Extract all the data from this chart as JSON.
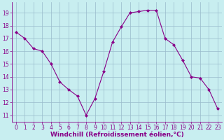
{
  "x": [
    0,
    1,
    2,
    3,
    4,
    5,
    6,
    7,
    8,
    9,
    10,
    11,
    12,
    13,
    14,
    15,
    16,
    17,
    18,
    19,
    20,
    21,
    22,
    23
  ],
  "y": [
    17.5,
    17.0,
    16.2,
    16.0,
    15.0,
    13.6,
    13.0,
    12.5,
    11.0,
    12.3,
    14.4,
    16.7,
    17.9,
    19.0,
    19.1,
    19.2,
    19.2,
    17.0,
    16.5,
    15.3,
    14.0,
    13.9,
    13.0,
    11.5
  ],
  "line_color": "#880088",
  "marker": "D",
  "marker_size": 2,
  "background_color": "#c8eef0",
  "grid_color": "#99bbcc",
  "xlabel": "Windchill (Refroidissement éolien,°C)",
  "xlabel_color": "#880088",
  "ylim": [
    10.5,
    19.85
  ],
  "xlim": [
    -0.5,
    23.5
  ],
  "yticks": [
    11,
    12,
    13,
    14,
    15,
    16,
    17,
    18,
    19
  ],
  "xticks": [
    0,
    1,
    2,
    3,
    4,
    5,
    6,
    7,
    8,
    9,
    10,
    11,
    12,
    13,
    14,
    15,
    16,
    17,
    18,
    19,
    20,
    21,
    22,
    23
  ],
  "tick_color": "#880088",
  "tick_fontsize": 5.5,
  "xlabel_fontsize": 6.5,
  "line_width": 0.8
}
